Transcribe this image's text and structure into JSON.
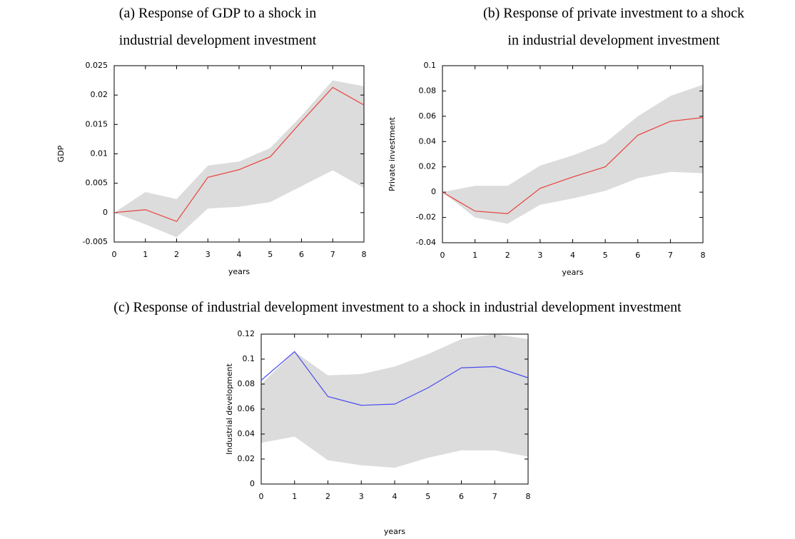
{
  "chart_data": [
    {
      "type": "line",
      "title": [
        "(a) Response of GDP to a shock in",
        "industrial development investment"
      ],
      "xlabel": "years",
      "ylabel": "GDP",
      "x": [
        0,
        1,
        2,
        3,
        4,
        5,
        6,
        7,
        8
      ],
      "values": [
        0,
        0.0005,
        -0.0015,
        0.006,
        0.0073,
        0.0095,
        0.0155,
        0.0213,
        0.0183
      ],
      "upper": [
        0,
        0.0035,
        0.0023,
        0.008,
        0.0087,
        0.011,
        0.0165,
        0.0225,
        0.0215
      ],
      "lower": [
        0,
        -0.002,
        -0.0042,
        0.0007,
        0.001,
        0.0018,
        0.0045,
        0.0072,
        0.0042
      ],
      "color": "#e8413c",
      "band_color": "#dcdcdc",
      "xlim": [
        0,
        8
      ],
      "xticks": [
        0,
        1,
        2,
        3,
        4,
        5,
        6,
        7,
        8
      ],
      "ylim": [
        -0.005,
        0.025
      ],
      "yticks": [
        -0.005,
        0,
        0.005,
        0.01,
        0.015,
        0.02,
        0.025
      ]
    },
    {
      "type": "line",
      "title": [
        "(b) Response of private investment to a shock",
        "in industrial development investment"
      ],
      "xlabel": "years",
      "ylabel": "Private investment",
      "x": [
        0,
        1,
        2,
        3,
        4,
        5,
        6,
        7,
        8
      ],
      "values": [
        0,
        -0.015,
        -0.017,
        0.003,
        0.012,
        0.02,
        0.045,
        0.056,
        0.059
      ],
      "upper": [
        0,
        0.005,
        0.005,
        0.021,
        0.029,
        0.039,
        0.06,
        0.076,
        0.085
      ],
      "lower": [
        0,
        -0.02,
        -0.025,
        -0.01,
        -0.005,
        0.001,
        0.011,
        0.016,
        0.015
      ],
      "color": "#e8413c",
      "band_color": "#dcdcdc",
      "xlim": [
        0,
        8
      ],
      "xticks": [
        0,
        1,
        2,
        3,
        4,
        5,
        6,
        7,
        8
      ],
      "ylim": [
        -0.04,
        0.1
      ],
      "yticks": [
        -0.04,
        -0.02,
        0,
        0.02,
        0.04,
        0.06,
        0.08,
        0.1
      ]
    },
    {
      "type": "line",
      "title": [
        "(c) Response of industrial development investment to a shock in industrial development investment"
      ],
      "xlabel": "years",
      "ylabel": "Industrial development",
      "x": [
        0,
        1,
        2,
        3,
        4,
        5,
        6,
        7,
        8
      ],
      "values": [
        0.083,
        0.106,
        0.07,
        0.063,
        0.064,
        0.077,
        0.093,
        0.094,
        0.085
      ],
      "upper": [
        0.08,
        0.106,
        0.087,
        0.088,
        0.094,
        0.104,
        0.116,
        0.12,
        0.116
      ],
      "lower": [
        0.033,
        0.038,
        0.019,
        0.015,
        0.013,
        0.021,
        0.027,
        0.027,
        0.022
      ],
      "color": "#4a4af0",
      "band_color": "#dcdcdc",
      "xlim": [
        0,
        8
      ],
      "xticks": [
        0,
        1,
        2,
        3,
        4,
        5,
        6,
        7,
        8
      ],
      "ylim": [
        0,
        0.12
      ],
      "yticks": [
        0,
        0.02,
        0.04,
        0.06,
        0.08,
        0.1,
        0.12
      ]
    }
  ]
}
